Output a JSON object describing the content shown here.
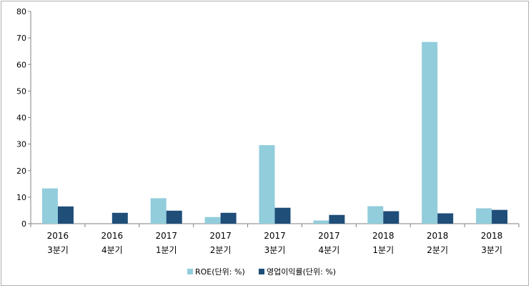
{
  "chart_data": {
    "type": "bar",
    "categories": [
      [
        "2016",
        "3분기"
      ],
      [
        "2016",
        "4분기"
      ],
      [
        "2017",
        "1분기"
      ],
      [
        "2017",
        "2분기"
      ],
      [
        "2017",
        "3분기"
      ],
      [
        "2017",
        "4분기"
      ],
      [
        "2018",
        "1분기"
      ],
      [
        "2018",
        "2분기"
      ],
      [
        "2018",
        "3분기"
      ]
    ],
    "series": [
      {
        "name": "ROE(단위: %)",
        "color": "#92cddc",
        "values": [
          13.3,
          0,
          9.6,
          2.5,
          29.6,
          1.2,
          6.6,
          68.5,
          5.8
        ]
      },
      {
        "name": "영업이익률(단위: %)",
        "color": "#1f4e79",
        "values": [
          6.5,
          4.1,
          4.9,
          4.1,
          6.0,
          3.3,
          4.7,
          3.9,
          5.2
        ]
      }
    ],
    "ylim": [
      0,
      80
    ],
    "yticks": [
      0,
      10,
      20,
      30,
      40,
      50,
      60,
      70,
      80
    ],
    "legend_position": "bottom",
    "grid": false
  }
}
